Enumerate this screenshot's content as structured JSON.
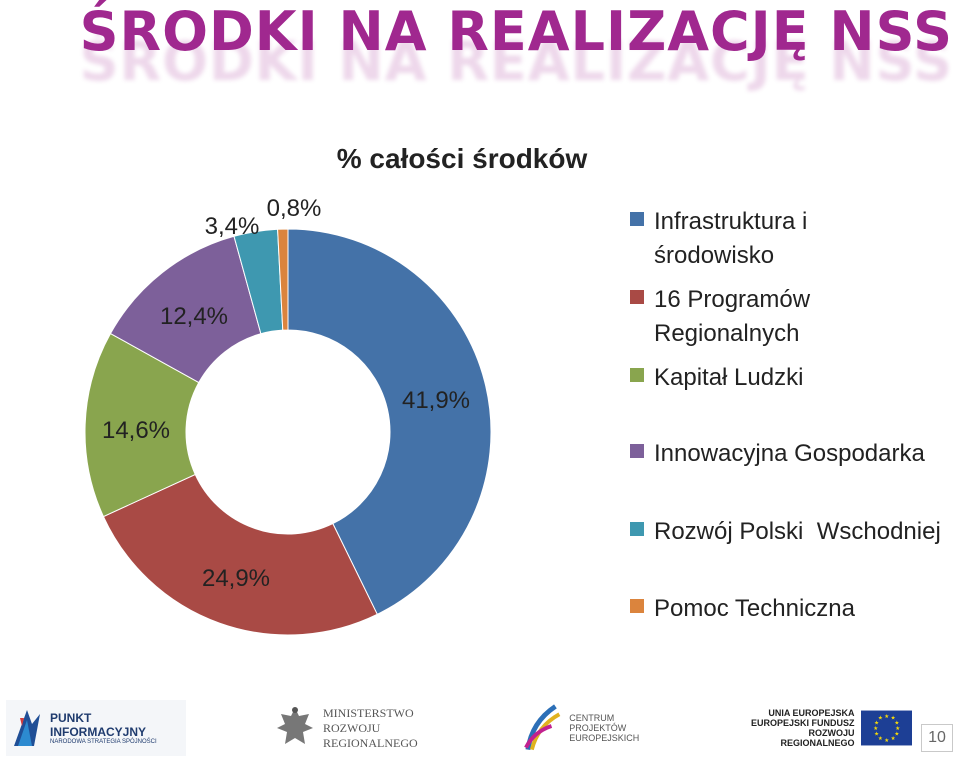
{
  "slide": {
    "title": "ŚRODKI NA REALIZACJĘ NSS",
    "page_number": "10"
  },
  "chart_data": {
    "type": "pie",
    "donut": true,
    "title": "% całości środków",
    "legend_position": "right",
    "slices": [
      {
        "name": "Infrastruktura i środowisko",
        "value": 41.9,
        "label": "41,9%",
        "color": "#4472a8"
      },
      {
        "name": "16 Programów Regionalnych",
        "value": 24.9,
        "label": "24,9%",
        "color": "#a94a45"
      },
      {
        "name": "Kapitał Ludzki",
        "value": 14.6,
        "label": "14,6%",
        "color": "#89a54e"
      },
      {
        "name": "Innowacyjna Gospodarka",
        "value": 12.4,
        "label": "12,4%",
        "color": "#7d609a"
      },
      {
        "name": "Rozwój Polski  Wschodniej",
        "value": 3.4,
        "label": "3,4%",
        "color": "#3e98b0"
      },
      {
        "name": "Pomoc Techniczna",
        "value": 0.8,
        "label": "0,8%",
        "color": "#db843d"
      }
    ]
  },
  "footer": {
    "logo1": {
      "line1": "PUNKT",
      "line2": "INFORMACYJNY",
      "line3": "NARODOWA STRATEGIA SPÓJNOŚCI"
    },
    "logo2": {
      "line1": "MINISTERSTWO",
      "line2": "ROZWOJU",
      "line3": "REGIONALNEGO"
    },
    "logo3": {
      "line1": "CENTRUM PROJEKTÓW",
      "line2": "EUROPEJSKICH"
    },
    "logo4": {
      "line1": "UNIA EUROPEJSKA",
      "line2": "EUROPEJSKI FUNDUSZ",
      "line3": "ROZWOJU REGIONALNEGO"
    }
  }
}
